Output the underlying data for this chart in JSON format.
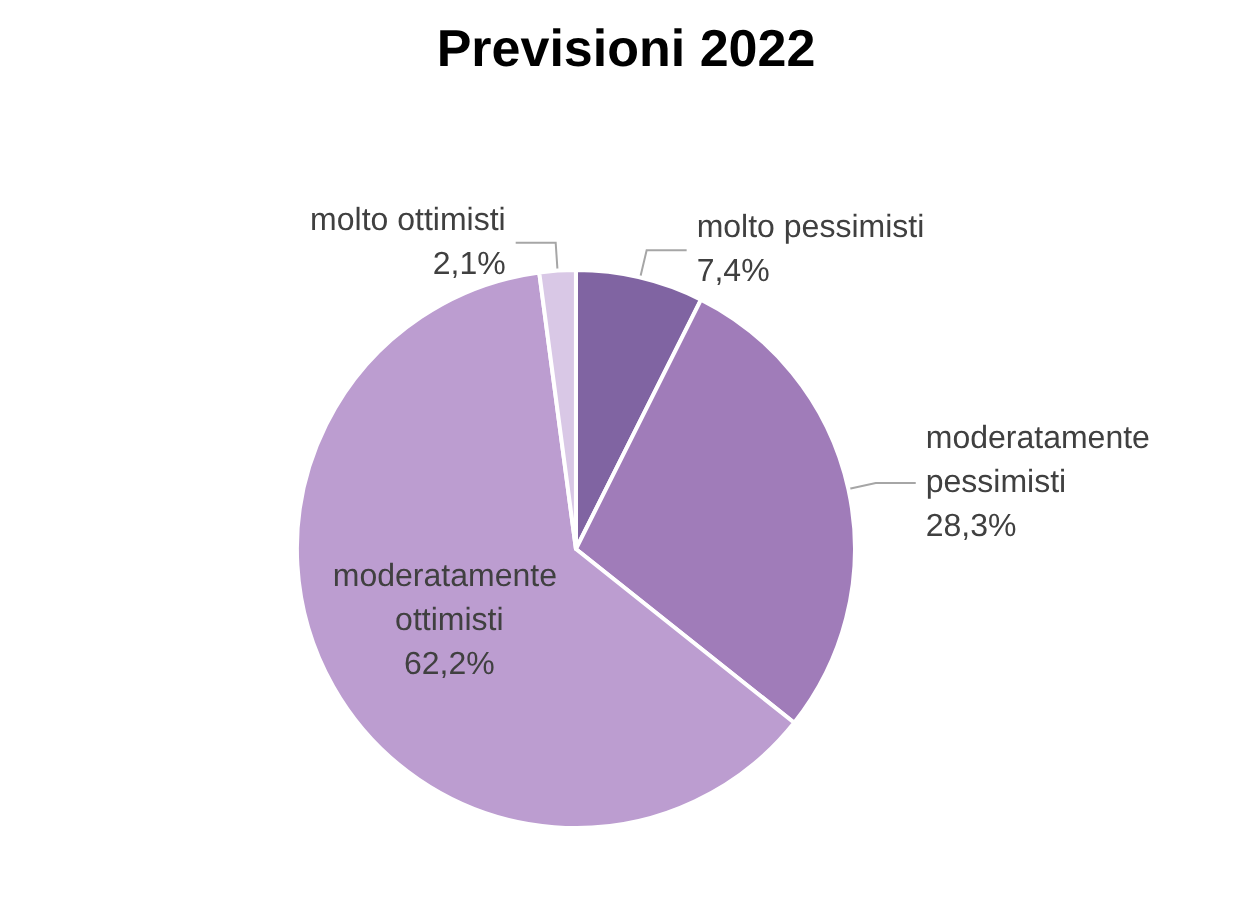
{
  "chart_data": {
    "type": "pie",
    "title": "Previsioni 2022",
    "categories": [
      "molto pessimisti",
      "moderatamente pessimisti",
      "moderatamente ottimisti",
      "molto ottimisti"
    ],
    "values": [
      7.4,
      28.3,
      62.2,
      2.1
    ],
    "colors": [
      "#8064a2",
      "#a07cb9",
      "#bc9dd0",
      "#d9c8e6"
    ],
    "value_labels": [
      "7,4%",
      "28,3%",
      "62,2%",
      "2,1%"
    ]
  }
}
